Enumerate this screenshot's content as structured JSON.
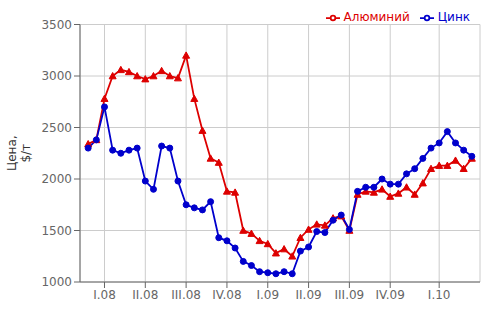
{
  "chart_data": {
    "type": "line",
    "ylabel": "Цена,\n$/т",
    "x": [
      0,
      1,
      2,
      3,
      4,
      5,
      6,
      7,
      8,
      9,
      10,
      11,
      12,
      13,
      14,
      15,
      16,
      17,
      18,
      19,
      20,
      21,
      22,
      23,
      24,
      25,
      26,
      27,
      28,
      29,
      30,
      31,
      32,
      33,
      34,
      35,
      36,
      37,
      38,
      39,
      40,
      41,
      42,
      43,
      44,
      45,
      46,
      47
    ],
    "series": [
      {
        "name": "Алюминий",
        "color": "#dd0000",
        "marker": "triangle",
        "values": [
          2340,
          2380,
          2780,
          3000,
          3060,
          3040,
          3000,
          2970,
          3000,
          3050,
          3000,
          2980,
          3200,
          2780,
          2470,
          2200,
          2160,
          1880,
          1870,
          1500,
          1470,
          1400,
          1370,
          1280,
          1320,
          1250,
          1430,
          1510,
          1560,
          1550,
          1620,
          1640,
          1500,
          1850,
          1880,
          1870,
          1900,
          1830,
          1860,
          1920,
          1850,
          1960,
          2100,
          2130,
          2130,
          2180,
          2100,
          2200
        ]
      },
      {
        "name": "Цинк",
        "color": "#0000cc",
        "marker": "circle",
        "values": [
          2300,
          2380,
          2700,
          2280,
          2250,
          2280,
          2300,
          1980,
          1900,
          2320,
          2300,
          1980,
          1750,
          1720,
          1700,
          1780,
          1430,
          1400,
          1330,
          1200,
          1160,
          1100,
          1090,
          1080,
          1100,
          1080,
          1300,
          1340,
          1490,
          1480,
          1600,
          1650,
          1510,
          1880,
          1920,
          1920,
          2000,
          1950,
          1950,
          2050,
          2100,
          2200,
          2300,
          2350,
          2460,
          2350,
          2280,
          2220
        ]
      }
    ],
    "xlim": [
      -1,
      48
    ],
    "xticks": [
      {
        "value": 2,
        "label": "I.08"
      },
      {
        "value": 7,
        "label": "II.08"
      },
      {
        "value": 12,
        "label": "III.08"
      },
      {
        "value": 17,
        "label": "IV.08"
      },
      {
        "value": 22,
        "label": "I.09"
      },
      {
        "value": 27,
        "label": "II.09"
      },
      {
        "value": 32,
        "label": "III.09"
      },
      {
        "value": 37,
        "label": "IV.09"
      },
      {
        "value": 43,
        "label": "I.10"
      }
    ],
    "ylim": [
      1000,
      3500
    ],
    "yticks": [
      1000,
      1500,
      2000,
      2500,
      3000,
      3500
    ],
    "grid": true,
    "legend": "upper right"
  }
}
